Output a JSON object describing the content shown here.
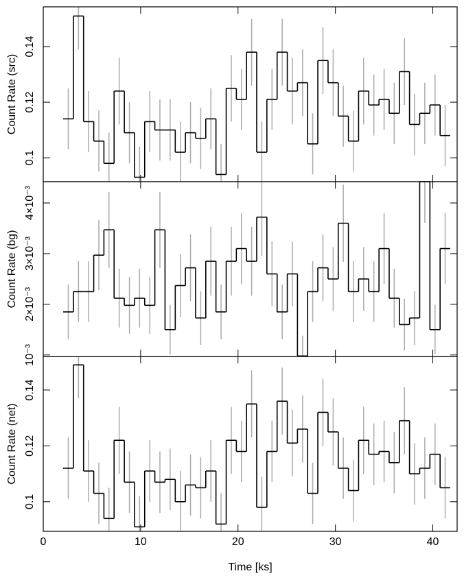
{
  "chart_data": [
    {
      "type": "step",
      "y_label": "Count Rate (src)",
      "color": "#000000",
      "error_color": "#aaaaaa",
      "x": [
        2.57,
        3.62,
        4.66,
        5.71,
        6.75,
        7.8,
        8.85,
        9.89,
        10.94,
        11.98,
        13.03,
        14.08,
        15.12,
        16.17,
        17.21,
        18.26,
        19.31,
        20.35,
        21.4,
        22.44,
        23.49,
        24.54,
        25.58,
        26.63,
        27.67,
        28.72,
        29.77,
        30.81,
        31.86,
        32.9,
        33.95,
        35.0,
        36.04,
        37.09,
        38.13,
        39.18,
        40.23,
        41.27
      ],
      "values": [
        0.114,
        0.151,
        0.113,
        0.106,
        0.098,
        0.124,
        0.109,
        0.093,
        0.113,
        0.11,
        0.11,
        0.102,
        0.109,
        0.107,
        0.114,
        0.094,
        0.125,
        0.121,
        0.138,
        0.102,
        0.121,
        0.138,
        0.124,
        0.127,
        0.105,
        0.135,
        0.127,
        0.115,
        0.106,
        0.124,
        0.119,
        0.121,
        0.116,
        0.131,
        0.112,
        0.116,
        0.119,
        0.108
      ],
      "errors": [
        0.011,
        0.012,
        0.011,
        0.011,
        0.011,
        0.012,
        0.011,
        0.011,
        0.011,
        0.011,
        0.011,
        0.011,
        0.011,
        0.011,
        0.011,
        0.011,
        0.012,
        0.011,
        0.012,
        0.011,
        0.011,
        0.012,
        0.012,
        0.012,
        0.011,
        0.012,
        0.012,
        0.011,
        0.011,
        0.012,
        0.011,
        0.011,
        0.011,
        0.012,
        0.011,
        0.011,
        0.011,
        0.011
      ],
      "xlim": [
        0,
        42.5
      ],
      "ylim": [
        0.0914,
        0.1543
      ],
      "yticks": [
        0.1,
        0.12,
        0.14
      ]
    },
    {
      "type": "step",
      "y_label": "Count Rate (bg)",
      "color": "#000000",
      "error_color": "#aaaaaa",
      "x": [
        2.57,
        3.62,
        4.66,
        5.71,
        6.75,
        7.8,
        8.85,
        9.89,
        10.94,
        11.98,
        13.03,
        14.08,
        15.12,
        16.17,
        17.21,
        18.26,
        19.31,
        20.35,
        21.4,
        22.44,
        23.49,
        24.54,
        25.58,
        26.63,
        27.67,
        28.72,
        29.77,
        30.81,
        31.86,
        32.9,
        33.95,
        35.0,
        36.04,
        37.09,
        38.13,
        39.18,
        40.23,
        41.27
      ],
      "values": [
        0.00185,
        0.00225,
        0.00225,
        0.00297,
        0.00347,
        0.00212,
        0.00198,
        0.00212,
        0.00198,
        0.00347,
        0.0015,
        0.00237,
        0.00272,
        0.00173,
        0.00285,
        0.00185,
        0.00285,
        0.0031,
        0.00285,
        0.00372,
        0.0026,
        0.00185,
        0.0026,
        0.00098,
        0.00225,
        0.00272,
        0.0025,
        0.0036,
        0.00225,
        0.0025,
        0.00225,
        0.0031,
        0.00212,
        0.0016,
        0.00173,
        0.00445,
        0.0015,
        0.0031
      ],
      "errors": [
        0.00054,
        0.0006,
        0.0006,
        0.00069,
        0.00075,
        0.00058,
        0.00056,
        0.00058,
        0.00056,
        0.00075,
        0.00049,
        0.00062,
        0.00066,
        0.00053,
        0.00068,
        0.00054,
        0.00068,
        0.0007,
        0.00068,
        0.00077,
        0.00064,
        0.00054,
        0.00064,
        0.0004,
        0.0006,
        0.00066,
        0.00063,
        0.00076,
        0.0006,
        0.00063,
        0.0006,
        0.0007,
        0.00058,
        0.00051,
        0.00053,
        0.00084,
        0.00049,
        0.0007
      ],
      "xlim": [
        0,
        42.5
      ],
      "ylim": [
        0.00097,
        0.00442
      ],
      "yticks": [
        {
          "value": 0.001,
          "label": "10⁻³"
        },
        {
          "value": 0.002,
          "label": "2×10⁻³"
        },
        {
          "value": 0.003,
          "label": "3×10⁻³"
        },
        {
          "value": 0.004,
          "label": "4×10⁻³"
        }
      ]
    },
    {
      "type": "step",
      "y_label": "Count Rate (net)",
      "x_label": "Time [ks]",
      "color": "#000000",
      "error_color": "#aaaaaa",
      "x": [
        2.57,
        3.62,
        4.66,
        5.71,
        6.75,
        7.8,
        8.85,
        9.89,
        10.94,
        11.98,
        13.03,
        14.08,
        15.12,
        16.17,
        17.21,
        18.26,
        19.31,
        20.35,
        21.4,
        22.44,
        23.49,
        24.54,
        25.58,
        26.63,
        27.67,
        28.72,
        29.77,
        30.81,
        31.86,
        32.9,
        33.95,
        35.0,
        36.04,
        37.09,
        38.13,
        39.18,
        40.23,
        41.27
      ],
      "values": [
        0.112,
        0.149,
        0.111,
        0.103,
        0.094,
        0.122,
        0.107,
        0.091,
        0.111,
        0.107,
        0.108,
        0.1,
        0.106,
        0.105,
        0.111,
        0.092,
        0.122,
        0.118,
        0.135,
        0.098,
        0.118,
        0.136,
        0.121,
        0.126,
        0.103,
        0.132,
        0.125,
        0.112,
        0.104,
        0.122,
        0.117,
        0.118,
        0.114,
        0.129,
        0.11,
        0.112,
        0.117,
        0.105
      ],
      "errors": [
        0.011,
        0.012,
        0.011,
        0.011,
        0.011,
        0.012,
        0.011,
        0.011,
        0.011,
        0.011,
        0.011,
        0.011,
        0.011,
        0.011,
        0.011,
        0.011,
        0.012,
        0.011,
        0.012,
        0.011,
        0.011,
        0.012,
        0.012,
        0.012,
        0.011,
        0.012,
        0.012,
        0.011,
        0.011,
        0.012,
        0.011,
        0.011,
        0.011,
        0.012,
        0.011,
        0.011,
        0.011,
        0.011
      ],
      "xlim": [
        0,
        42.5
      ],
      "ylim": [
        0.0894,
        0.152
      ],
      "yticks": [
        0.1,
        0.12,
        0.14
      ],
      "xticks": [
        0,
        10,
        20,
        30,
        40
      ]
    }
  ]
}
